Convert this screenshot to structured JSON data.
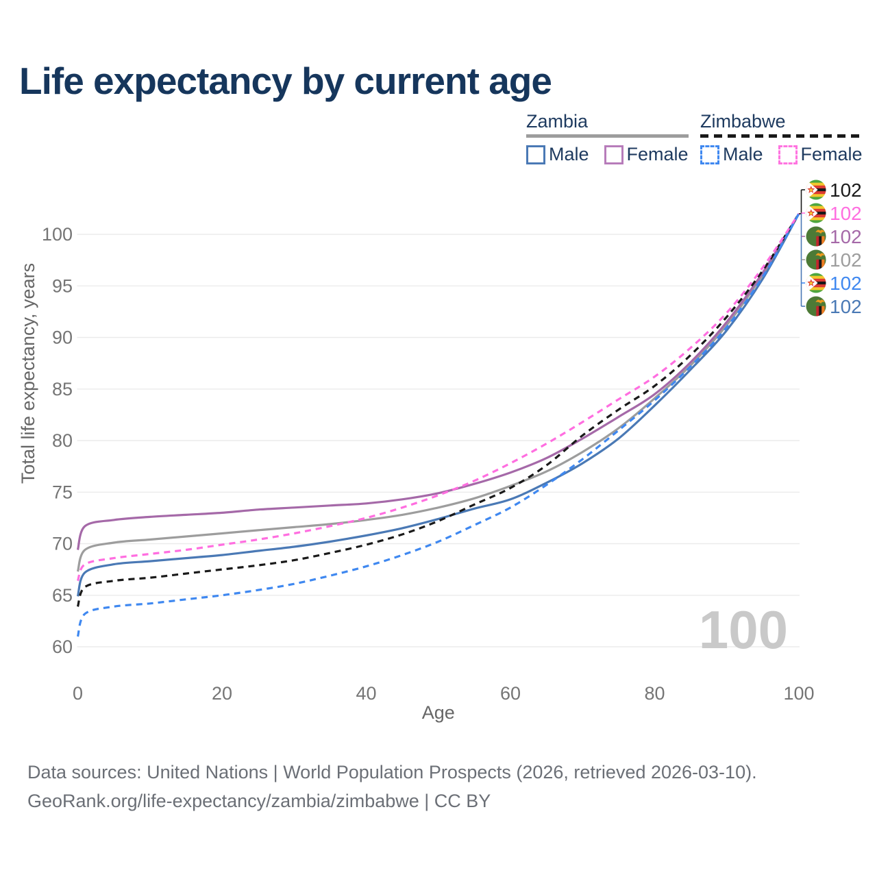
{
  "title": "Life expectancy by current age",
  "watermark": "100",
  "footer": {
    "line1": "Data sources: United Nations | World Population Prospects (2026, retrieved 2026-03-10).",
    "line2": "GeoRank.org/life-expectancy/zambia/zimbabwe | CC BY"
  },
  "legend": {
    "groups": [
      {
        "id": "zambia",
        "title": "Zambia",
        "line_style": "solid",
        "line_color": "#9d9d9d",
        "items": [
          {
            "label": "Male",
            "color": "#4a79b5",
            "dashed": false
          },
          {
            "label": "Female",
            "color": "#b77cba",
            "dashed": false
          }
        ]
      },
      {
        "id": "zimbabwe",
        "title": "Zimbabwe",
        "line_style": "dashed",
        "line_color": "#1a1a1a",
        "items": [
          {
            "label": "Male",
            "color": "#3f88f0",
            "dashed": true
          },
          {
            "label": "Female",
            "color": "#ff74e0",
            "dashed": true
          }
        ]
      }
    ]
  },
  "chart_data": {
    "type": "line",
    "title": "Life expectancy by current age",
    "xlabel": "Age",
    "ylabel": "Total life expectancy, years",
    "xlim": [
      0,
      100
    ],
    "ylim": [
      60,
      103
    ],
    "x_ticks": [
      0,
      20,
      40,
      60,
      80,
      100
    ],
    "y_ticks": [
      60,
      65,
      70,
      75,
      80,
      85,
      90,
      95,
      100
    ],
    "grid": "horizontal",
    "x": [
      0,
      1,
      5,
      10,
      15,
      20,
      25,
      30,
      35,
      40,
      45,
      50,
      55,
      60,
      65,
      70,
      75,
      80,
      85,
      90,
      95,
      100
    ],
    "series": [
      {
        "id": "zambia-all",
        "name": "Zambia",
        "country": "zambia",
        "sex": "all",
        "color": "#9d9d9d",
        "dashed": false,
        "values": [
          67.3,
          69.4,
          70.1,
          70.4,
          70.7,
          71.0,
          71.3,
          71.6,
          71.9,
          72.3,
          72.8,
          73.5,
          74.4,
          75.6,
          77.0,
          78.9,
          81.2,
          84.1,
          87.3,
          91.2,
          96.1,
          102
        ]
      },
      {
        "id": "zambia-female",
        "name": "Zambia Female",
        "country": "zambia",
        "sex": "female",
        "color": "#a569a8",
        "dashed": false,
        "values": [
          69.4,
          71.7,
          72.3,
          72.6,
          72.8,
          73.0,
          73.3,
          73.5,
          73.7,
          73.9,
          74.3,
          74.9,
          75.8,
          76.9,
          78.3,
          80.2,
          82.3,
          84.5,
          87.6,
          91.5,
          96.3,
          102
        ]
      },
      {
        "id": "zambia-male",
        "name": "Zambia Male",
        "country": "zambia",
        "sex": "male",
        "color": "#4a79b5",
        "dashed": false,
        "values": [
          64.9,
          67.2,
          68.0,
          68.3,
          68.6,
          68.9,
          69.3,
          69.7,
          70.2,
          70.8,
          71.5,
          72.4,
          73.4,
          74.3,
          75.9,
          77.8,
          80.2,
          83.4,
          86.9,
          90.7,
          95.7,
          102
        ]
      },
      {
        "id": "zimbabwe-all",
        "name": "Zimbabwe",
        "country": "zimbabwe",
        "sex": "all",
        "color": "#1a1a1a",
        "dashed": true,
        "values": [
          63.9,
          65.8,
          66.4,
          66.7,
          67.1,
          67.5,
          67.9,
          68.4,
          69.1,
          69.9,
          70.9,
          72.2,
          73.8,
          75.4,
          77.6,
          80.5,
          83.0,
          85.3,
          88.3,
          92.0,
          96.5,
          102
        ]
      },
      {
        "id": "zimbabwe-female",
        "name": "Zimbabwe Female",
        "country": "zimbabwe",
        "sex": "female",
        "color": "#ff6ee0",
        "dashed": true,
        "values": [
          66.4,
          68.0,
          68.6,
          69.0,
          69.4,
          69.9,
          70.4,
          71.0,
          71.7,
          72.5,
          73.5,
          74.7,
          76.1,
          77.8,
          79.7,
          81.8,
          84.0,
          86.2,
          89.0,
          92.4,
          96.8,
          102
        ]
      },
      {
        "id": "zimbabwe-male",
        "name": "Zimbabwe Male",
        "country": "zimbabwe",
        "sex": "male",
        "color": "#3f88f0",
        "dashed": true,
        "values": [
          61.0,
          63.2,
          63.9,
          64.2,
          64.6,
          65.0,
          65.5,
          66.1,
          66.9,
          67.8,
          68.9,
          70.2,
          71.8,
          73.5,
          75.7,
          78.2,
          81.0,
          83.9,
          87.2,
          91.0,
          95.9,
          102
        ]
      }
    ],
    "end_labels": [
      {
        "series": "zimbabwe-all",
        "flag": "zimbabwe",
        "value": "102",
        "color": "#1a1a1a"
      },
      {
        "series": "zimbabwe-female",
        "flag": "zimbabwe",
        "value": "102",
        "color": "#ff6ee0"
      },
      {
        "series": "zambia-female",
        "flag": "zambia",
        "value": "102",
        "color": "#a569a8"
      },
      {
        "series": "zambia-all",
        "flag": "zambia",
        "value": "102",
        "color": "#9d9d9d"
      },
      {
        "series": "zimbabwe-male",
        "flag": "zimbabwe",
        "value": "102",
        "color": "#3f88f0"
      },
      {
        "series": "zambia-male",
        "flag": "zambia",
        "value": "102",
        "color": "#4a79b5"
      }
    ],
    "legend_position": "top-right"
  }
}
